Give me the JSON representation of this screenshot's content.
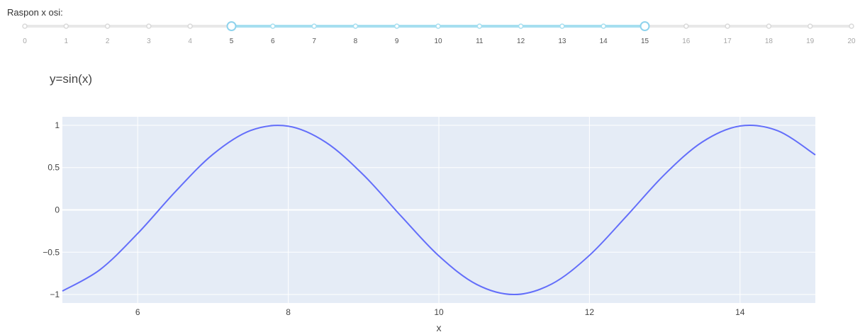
{
  "range_slider": {
    "label": "Raspon x osi:",
    "min": 0,
    "max": 20,
    "step": 1,
    "selected_low": 5,
    "selected_high": 15,
    "marks": [
      "0",
      "1",
      "2",
      "3",
      "4",
      "5",
      "6",
      "7",
      "8",
      "9",
      "10",
      "11",
      "12",
      "13",
      "14",
      "15",
      "16",
      "17",
      "18",
      "19",
      "20"
    ],
    "colors": {
      "track": "#e8e8e8",
      "track_selected": "#a6dff0",
      "dot_border": "#d9d9d9",
      "dot_selected_border": "#a6dff0",
      "handle_border": "#8fd3ed",
      "mark_text": "#a6a6a6",
      "mark_text_selected": "#555555"
    }
  },
  "chart_data": {
    "type": "line",
    "title": "y=sin(x)",
    "xlabel": "x",
    "ylabel": "",
    "xlim": [
      5,
      15
    ],
    "ylim": [
      -1.1,
      1.1
    ],
    "x_ticks": [
      6,
      8,
      10,
      12,
      14
    ],
    "y_ticks": [
      1,
      0.5,
      0,
      -0.5,
      -1
    ],
    "y_tick_labels": [
      "1",
      "0.5",
      "0",
      "−0.5",
      "−1"
    ],
    "grid": true,
    "legend": "none",
    "series": [
      {
        "function": "sin(x)",
        "color": "#636efa",
        "x": [
          5.0,
          5.5,
          6.0,
          6.5,
          7.0,
          7.5,
          8.0,
          8.5,
          9.0,
          9.5,
          10.0,
          10.5,
          11.0,
          11.5,
          12.0,
          12.5,
          13.0,
          13.5,
          14.0,
          14.5,
          15.0
        ],
        "y": [
          -0.959,
          -0.706,
          -0.279,
          0.215,
          0.657,
          0.938,
          0.989,
          0.798,
          0.412,
          -0.075,
          -0.544,
          -0.88,
          -1.0,
          -0.875,
          -0.537,
          -0.066,
          0.42,
          0.803,
          0.991,
          0.935,
          0.65
        ]
      }
    ],
    "colors": {
      "plot_bg": "#e5ecf6",
      "grid": "#ffffff",
      "tick_text": "#444444",
      "title_text": "#444444"
    }
  }
}
